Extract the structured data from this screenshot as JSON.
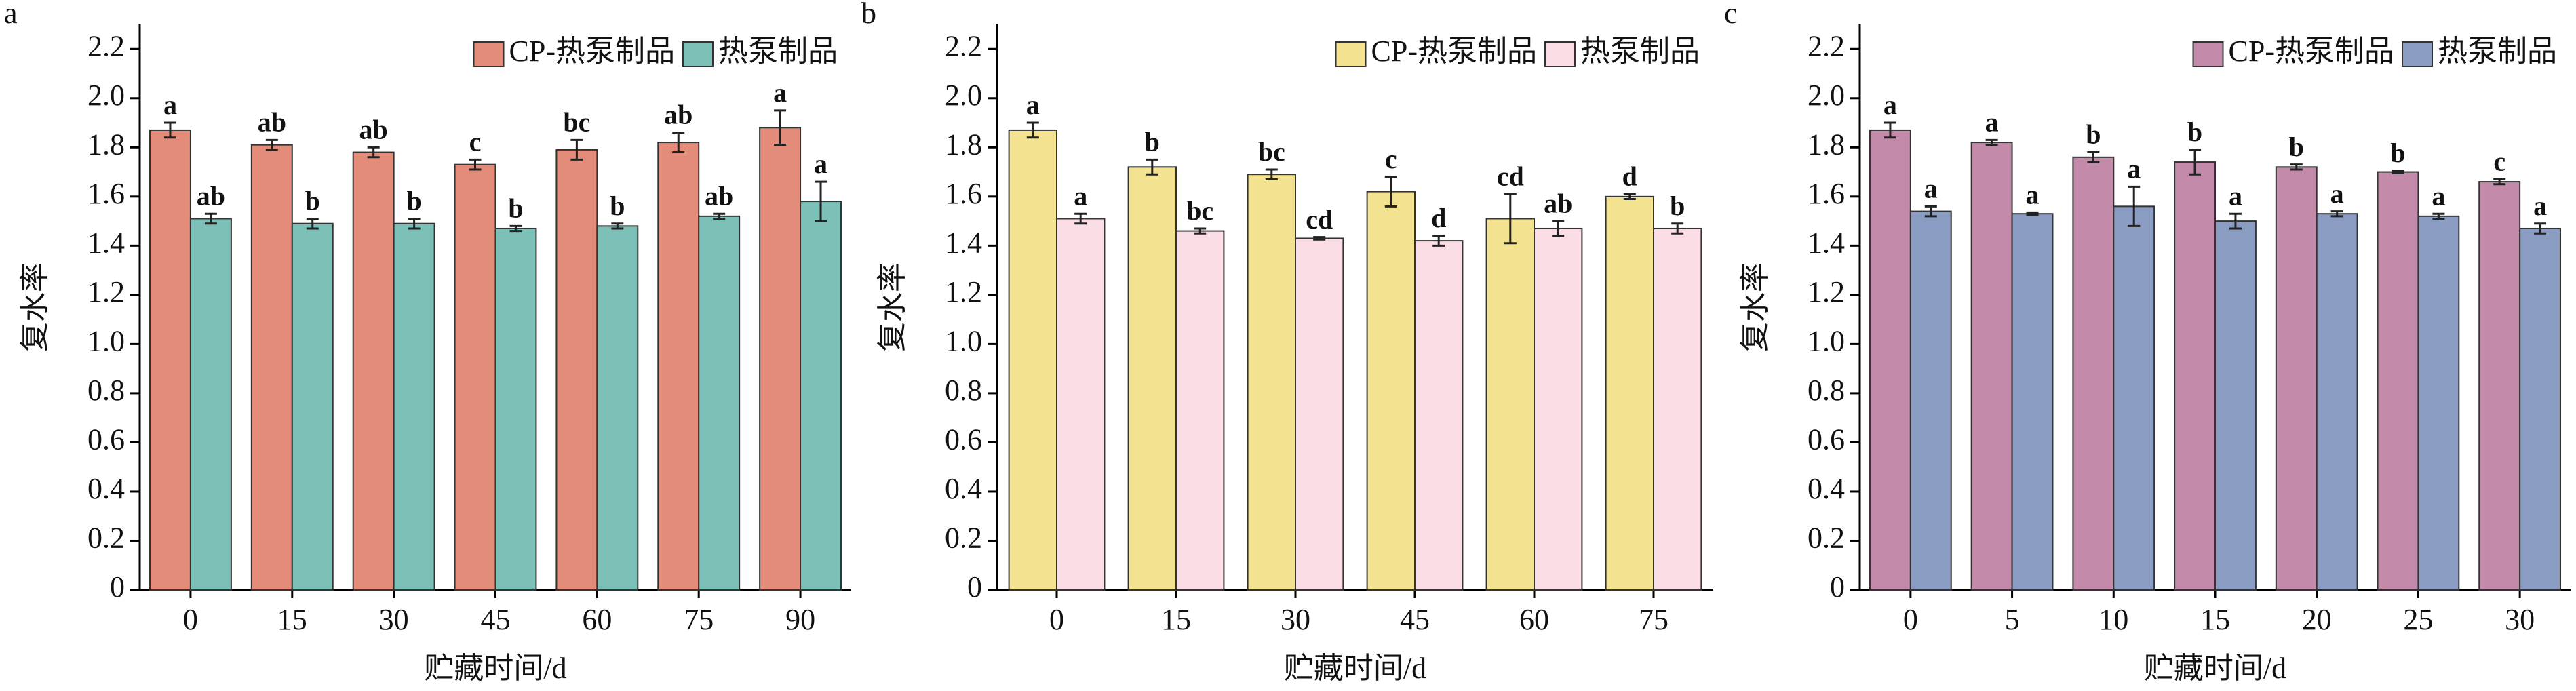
{
  "chart_data": [
    {
      "type": "bar",
      "panel": "a",
      "x_label": "贮藏时间/d",
      "y_label": "复水率",
      "categories": [
        "0",
        "15",
        "30",
        "45",
        "60",
        "75",
        "90"
      ],
      "ylim": [
        0,
        2.3
      ],
      "yticks": [
        0,
        0.2,
        0.4,
        0.6,
        0.8,
        {
          "value": 1,
          "label": "1.0"
        },
        1.2,
        1.4,
        1.6,
        1.8,
        {
          "value": 2,
          "label": "2.0"
        },
        2.2
      ],
      "series": [
        {
          "name": "CP-热泵制品",
          "color": "#e38c7a",
          "values": [
            1.87,
            1.81,
            1.78,
            1.73,
            1.79,
            1.82,
            1.88
          ],
          "errors": [
            0.03,
            0.02,
            0.02,
            0.02,
            0.04,
            0.04,
            0.07
          ],
          "significance": [
            "a",
            "ab",
            "ab",
            "c",
            "bc",
            "ab",
            "a"
          ]
        },
        {
          "name": "热泵制品",
          "color": "#7cc0b8",
          "values": [
            1.51,
            1.49,
            1.49,
            1.47,
            1.48,
            1.52,
            1.58
          ],
          "errors": [
            0.02,
            0.02,
            0.02,
            0.01,
            0.01,
            0.01,
            0.08
          ],
          "significance": [
            "ab",
            "b",
            "b",
            "b",
            "b",
            "ab",
            "a"
          ]
        }
      ]
    },
    {
      "type": "bar",
      "panel": "b",
      "x_label": "贮藏时间/d",
      "y_label": "复水率",
      "categories": [
        "0",
        "15",
        "30",
        "45",
        "60",
        "75"
      ],
      "ylim": [
        0,
        2.3
      ],
      "yticks": [
        0,
        0.2,
        0.4,
        0.6,
        0.8,
        {
          "value": 1,
          "label": "1.0"
        },
        1.2,
        1.4,
        1.6,
        1.8,
        {
          "value": 2,
          "label": "2.0"
        },
        2.2
      ],
      "series": [
        {
          "name": "CP-热泵制品",
          "color": "#f3e28f",
          "values": [
            1.87,
            1.72,
            1.69,
            1.62,
            1.51,
            1.6
          ],
          "errors": [
            0.03,
            0.03,
            0.02,
            0.06,
            0.1,
            0.01
          ],
          "significance": [
            "a",
            "b",
            "bc",
            "c",
            "cd",
            "d"
          ]
        },
        {
          "name": "热泵制品",
          "color": "#fbdde6",
          "values": [
            1.51,
            1.46,
            1.43,
            1.42,
            1.47,
            1.47
          ],
          "errors": [
            0.02,
            0.01,
            0.005,
            0.02,
            0.03,
            0.02
          ],
          "significance": [
            "a",
            "bc",
            "cd",
            "d",
            "ab",
            "b"
          ]
        }
      ]
    },
    {
      "type": "bar",
      "panel": "c",
      "x_label": "贮藏时间/d",
      "y_label": "复水率",
      "categories": [
        "0",
        "5",
        "10",
        "15",
        "20",
        "25",
        "30"
      ],
      "ylim": [
        0,
        2.3
      ],
      "yticks": [
        0,
        0.2,
        0.4,
        0.6,
        0.8,
        {
          "value": 1,
          "label": "1.0"
        },
        1.2,
        1.4,
        1.6,
        1.8,
        {
          "value": 2,
          "label": "2.0"
        },
        2.2
      ],
      "series": [
        {
          "name": "CP-热泵制品",
          "color": "#c48aa9",
          "values": [
            1.87,
            1.82,
            1.76,
            1.74,
            1.72,
            1.7,
            1.66
          ],
          "errors": [
            0.03,
            0.01,
            0.02,
            0.05,
            0.01,
            0.005,
            0.01
          ],
          "significance": [
            "a",
            "a",
            "b",
            "b",
            "b",
            "b",
            "c"
          ]
        },
        {
          "name": "热泵制品",
          "color": "#8a9cc2",
          "values": [
            1.54,
            1.53,
            1.56,
            1.5,
            1.53,
            1.52,
            1.47
          ],
          "errors": [
            0.02,
            0.005,
            0.08,
            0.03,
            0.01,
            0.01,
            0.02
          ],
          "significance": [
            "a",
            "a",
            "a",
            "a",
            "a",
            "a",
            "a"
          ]
        }
      ]
    }
  ]
}
